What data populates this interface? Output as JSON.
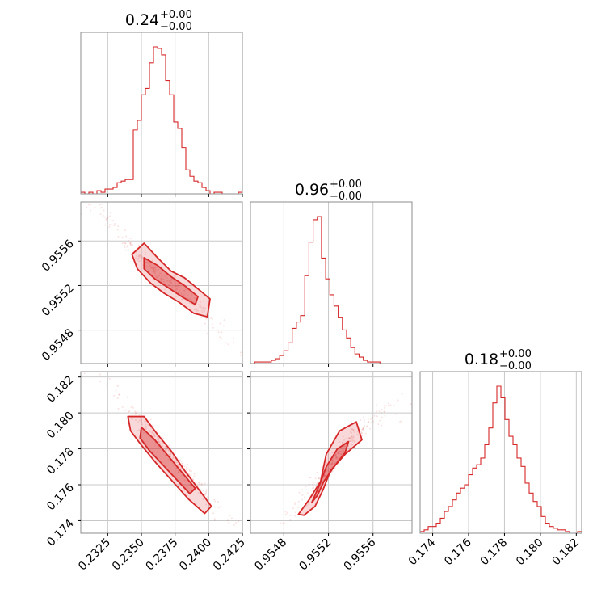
{
  "chart_data": {
    "type": "corner",
    "color": "#d62728",
    "grid": true,
    "parameters": [
      {
        "title": "0.24",
        "title_plus": "+0.00",
        "title_minus": "−0.00",
        "range": [
          0.2305,
          0.2425
        ],
        "ticks": [
          0.2325,
          0.235,
          0.2375,
          0.24,
          0.2425
        ],
        "tick_labels": [
          "0.2325",
          "0.2350",
          "0.2375",
          "0.2400",
          "0.2425"
        ],
        "histogram": {
          "start": 0.2305,
          "bin_width": 0.0003,
          "counts": [
            1,
            0,
            1,
            0,
            2,
            1,
            3,
            3,
            4,
            7,
            8,
            9,
            9,
            40,
            46,
            62,
            66,
            82,
            92,
            91,
            87,
            71,
            62,
            45,
            41,
            29,
            15,
            11,
            8,
            7,
            4,
            2,
            0,
            1,
            1,
            0,
            0,
            0,
            0,
            1
          ]
        }
      },
      {
        "title": "0.96",
        "title_plus": "+0.00",
        "title_minus": "−0.00",
        "range": [
          0.9545,
          0.95595
        ],
        "ticks": [
          0.9548,
          0.9552,
          0.9556
        ],
        "tick_labels": [
          "0.9548",
          "0.9552",
          "0.9556"
        ],
        "histogram": {
          "start": 0.9545,
          "bin_width": 3.75e-05,
          "counts": [
            0,
            1,
            1,
            1,
            1,
            2,
            3,
            5,
            8,
            13,
            22,
            26,
            30,
            55,
            76,
            90,
            92,
            66,
            53,
            43,
            36,
            29,
            21,
            16,
            10,
            6,
            4,
            2,
            1,
            1,
            1,
            0,
            0,
            0,
            0,
            0,
            0,
            0,
            0
          ]
        }
      },
      {
        "title": "0.18",
        "title_plus": "+0.00",
        "title_minus": "−0.00",
        "range": [
          0.1733,
          0.1823
        ],
        "ticks": [
          0.174,
          0.176,
          0.178,
          0.18,
          0.182
        ],
        "tick_labels": [
          "0.174",
          "0.176",
          "0.178",
          "0.180",
          "0.182"
        ],
        "histogram": {
          "start": 0.1733,
          "bin_width": 0.000225,
          "counts": [
            1,
            2,
            4,
            4,
            6,
            9,
            13,
            16,
            20,
            24,
            27,
            29,
            35,
            39,
            41,
            45,
            53,
            63,
            78,
            88,
            81,
            68,
            58,
            53,
            45,
            40,
            30,
            24,
            19,
            16,
            10,
            6,
            4,
            3,
            2,
            2,
            1,
            0,
            0,
            1
          ]
        }
      }
    ],
    "pairs": [
      {
        "x": 0,
        "y": 1,
        "ridge": [
          [
            0.2305,
            0.95595
          ],
          [
            0.232,
            0.95585
          ],
          [
            0.2335,
            0.95565
          ],
          [
            0.235,
            0.95545
          ],
          [
            0.2365,
            0.95527
          ],
          [
            0.238,
            0.95515
          ],
          [
            0.2395,
            0.95497
          ],
          [
            0.241,
            0.95475
          ],
          [
            0.2425,
            0.9546
          ]
        ],
        "contour_outer": [
          [
            0.2343,
            0.95548
          ],
          [
            0.2352,
            0.95558
          ],
          [
            0.2362,
            0.95545
          ],
          [
            0.2372,
            0.95533
          ],
          [
            0.2382,
            0.95527
          ],
          [
            0.2392,
            0.95517
          ],
          [
            0.2401,
            0.95508
          ],
          [
            0.2399,
            0.95492
          ],
          [
            0.2389,
            0.95495
          ],
          [
            0.2378,
            0.95505
          ],
          [
            0.2367,
            0.95513
          ],
          [
            0.2357,
            0.95522
          ],
          [
            0.2347,
            0.95535
          ]
        ],
        "contour_inner": [
          [
            0.2352,
            0.95545
          ],
          [
            0.2362,
            0.95538
          ],
          [
            0.2372,
            0.95528
          ],
          [
            0.2382,
            0.9552
          ],
          [
            0.2392,
            0.9551
          ],
          [
            0.239,
            0.95503
          ],
          [
            0.238,
            0.9551
          ],
          [
            0.237,
            0.95518
          ],
          [
            0.236,
            0.95526
          ],
          [
            0.2352,
            0.95535
          ]
        ]
      },
      {
        "x": 0,
        "y": 2,
        "ridge": [
          [
            0.2315,
            0.1825
          ],
          [
            0.233,
            0.1812
          ],
          [
            0.2345,
            0.18
          ],
          [
            0.236,
            0.1787
          ],
          [
            0.2375,
            0.1774
          ],
          [
            0.239,
            0.1761
          ],
          [
            0.2405,
            0.1747
          ],
          [
            0.242,
            0.1735
          ]
        ],
        "contour_outer": [
          [
            0.234,
            0.1798
          ],
          [
            0.2352,
            0.1798
          ],
          [
            0.2362,
            0.1788
          ],
          [
            0.2372,
            0.1779
          ],
          [
            0.2382,
            0.1768
          ],
          [
            0.2392,
            0.1758
          ],
          [
            0.2402,
            0.1748
          ],
          [
            0.2397,
            0.1744
          ],
          [
            0.2385,
            0.1752
          ],
          [
            0.2373,
            0.1762
          ],
          [
            0.2361,
            0.1772
          ],
          [
            0.235,
            0.1782
          ],
          [
            0.2342,
            0.179
          ]
        ],
        "contour_inner": [
          [
            0.235,
            0.1792
          ],
          [
            0.236,
            0.1785
          ],
          [
            0.237,
            0.1776
          ],
          [
            0.238,
            0.1767
          ],
          [
            0.239,
            0.1758
          ],
          [
            0.2386,
            0.1755
          ],
          [
            0.2376,
            0.1763
          ],
          [
            0.2366,
            0.1771
          ],
          [
            0.2356,
            0.1779
          ],
          [
            0.2349,
            0.1786
          ]
        ]
      },
      {
        "x": 1,
        "y": 2,
        "ridge": [
          [
            0.9548,
            0.174
          ],
          [
            0.95495,
            0.175
          ],
          [
            0.9551,
            0.176
          ],
          [
            0.9552,
            0.177
          ],
          [
            0.9553,
            0.1778
          ],
          [
            0.9554,
            0.1786
          ],
          [
            0.95555,
            0.1794
          ],
          [
            0.9557,
            0.18
          ],
          [
            0.9559,
            0.1805
          ]
        ],
        "contour_outer": [
          [
            0.95493,
            0.17435
          ],
          [
            0.95503,
            0.1752
          ],
          [
            0.95513,
            0.1762
          ],
          [
            0.95518,
            0.1777
          ],
          [
            0.9553,
            0.179
          ],
          [
            0.95545,
            0.1795
          ],
          [
            0.9555,
            0.1785
          ],
          [
            0.95535,
            0.1777
          ],
          [
            0.95522,
            0.1768
          ],
          [
            0.95515,
            0.1757
          ],
          [
            0.95508,
            0.1748
          ],
          [
            0.95498,
            0.1743
          ]
        ],
        "contour_inner": [
          [
            0.95505,
            0.175
          ],
          [
            0.95512,
            0.176
          ],
          [
            0.95518,
            0.177
          ],
          [
            0.95528,
            0.178
          ],
          [
            0.95538,
            0.1784
          ],
          [
            0.95535,
            0.1778
          ],
          [
            0.95525,
            0.177
          ],
          [
            0.95516,
            0.1762
          ],
          [
            0.9551,
            0.1754
          ]
        ]
      }
    ]
  }
}
